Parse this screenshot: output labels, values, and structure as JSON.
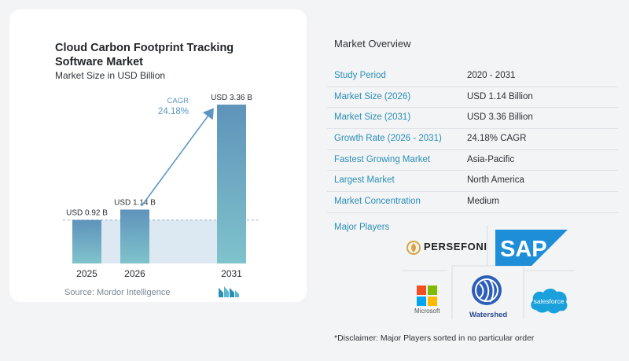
{
  "chart_data": {
    "type": "bar",
    "title": "Cloud Carbon Footprint Tracking Software Market",
    "subtitle": "Market Size in USD Billion",
    "categories": [
      "2025",
      "2026",
      "2031"
    ],
    "values": [
      0.92,
      1.14,
      3.36
    ],
    "value_labels": [
      "USD 0.92 B",
      "USD 1.14 B",
      "USD 3.36 B"
    ],
    "cagr_label": "CAGR",
    "cagr_value": "24.18%",
    "colors": {
      "bar_light": "#5f93bb",
      "bar_dark": "#7fc3cc",
      "band": "#dde9f2",
      "arrow": "#5b96c0",
      "cagr_text": "#5b96c0"
    }
  },
  "source": "Source: Mordor Intelligence",
  "brand_logo_icon": "mordor-intelligence-logo-icon",
  "overview": {
    "title": "Market Overview",
    "rows": [
      {
        "label": "Study Period",
        "value": "2020 - 2031"
      },
      {
        "label": "Market Size (2026)",
        "value": "USD 1.14 Billion"
      },
      {
        "label": "Market Size (2031)",
        "value": "USD 3.36 Billion"
      },
      {
        "label": "Growth Rate (2026 - 2031)",
        "value": "24.18% CAGR"
      },
      {
        "label": "Fastest Growing Market",
        "value": "Asia-Pacific"
      },
      {
        "label": "Largest Market",
        "value": "North America"
      },
      {
        "label": "Market Concentration",
        "value": "Medium"
      }
    ]
  },
  "players": {
    "title": "Major Players",
    "logos": {
      "persefoni": "PERSEFONI",
      "sap": "SAP",
      "microsoft": "Microsoft",
      "watershed": "Watershed",
      "salesforce": "salesforce"
    }
  },
  "disclaimer": "*Disclaimer: Major Players sorted in no particular order"
}
